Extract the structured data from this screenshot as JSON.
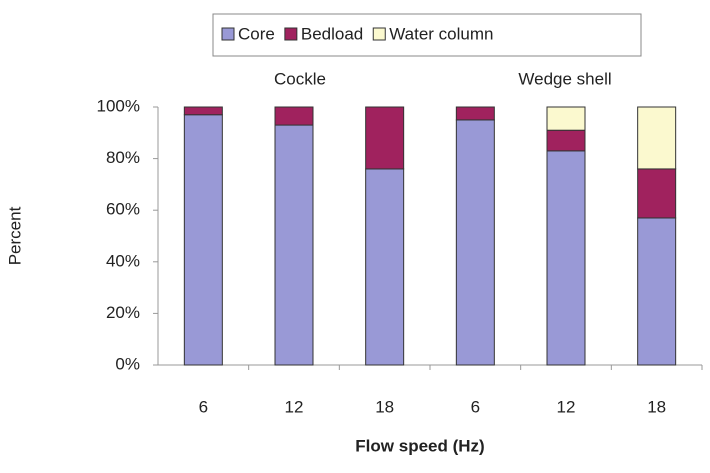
{
  "chart_data": {
    "type": "stacked_bar",
    "categories": [
      "6",
      "12",
      "18",
      "6",
      "12",
      "18"
    ],
    "series": [
      {
        "name": "Core",
        "color": "#9999d6",
        "values": [
          97,
          93,
          76,
          95,
          83,
          57
        ]
      },
      {
        "name": "Bedload",
        "color": "#a0225e",
        "values": [
          3,
          7,
          24,
          5,
          8,
          19
        ]
      },
      {
        "name": "Water column",
        "color": "#fbf9cf",
        "values": [
          0,
          0,
          0,
          0,
          9,
          24
        ]
      }
    ],
    "annotations": [
      "Cockle",
      "Wedge shell"
    ],
    "x_label": "Flow speed (Hz)",
    "y_label": "Percent",
    "ylim": [
      0,
      100
    ],
    "yticks": [
      {
        "value": 0,
        "label": "0%"
      },
      {
        "value": 20,
        "label": "20%"
      },
      {
        "value": 40,
        "label": "40%"
      },
      {
        "value": 60,
        "label": "60%"
      },
      {
        "value": 80,
        "label": "80%"
      },
      {
        "value": 100,
        "label": "100%"
      }
    ],
    "grid": false,
    "legend": "top"
  }
}
